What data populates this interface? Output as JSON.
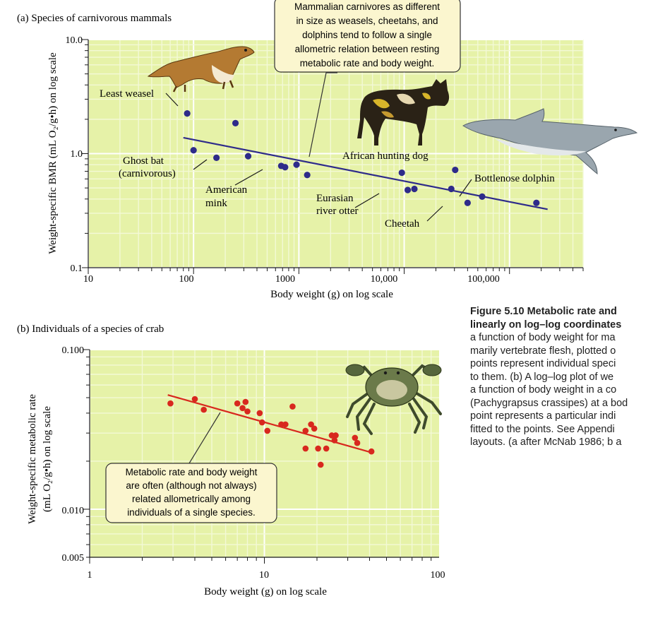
{
  "colors": {
    "plot_bg": "#e6f2a8",
    "grid_major": "#ffffff",
    "grid_minor": "#f3f9d6",
    "points_a": "#2e2b8a",
    "fit_a": "#2e2b8a",
    "points_b": "#d8281e",
    "fit_b": "#d8281e",
    "callout_bg": "#fbf6cf",
    "callout_border": "#333333"
  },
  "icons": [
    "weasel-icon",
    "hunting-dog-icon",
    "dolphin-icon",
    "crab-icon"
  ],
  "chart_data": [
    {
      "type": "scatter",
      "panel_label": "(a) Species of carnivorous mammals",
      "xlabel": "Body weight (g) on log scale",
      "ylabel": "Weight-specific BMR (mL O₂/g•h) on log scale",
      "xscale": "log",
      "yscale": "log",
      "xlim": [
        10,
        500000
      ],
      "ylim": [
        0.1,
        10
      ],
      "x_tick_labels": [
        "10",
        "100",
        "1000",
        "10,000",
        "100,000"
      ],
      "y_tick_labels": [
        "0.1",
        "1.0",
        "10.0"
      ],
      "grid": true,
      "series": [
        {
          "points": [
            [
              87,
              2.25
            ],
            [
              100,
              1.07
            ],
            [
              165,
              0.92
            ],
            [
              250,
              1.85
            ],
            [
              330,
              0.95
            ],
            [
              680,
              0.78
            ],
            [
              740,
              0.76
            ],
            [
              950,
              0.8
            ],
            [
              1200,
              0.65
            ],
            [
              9500,
              0.68
            ],
            [
              10800,
              0.48
            ],
            [
              12500,
              0.49
            ],
            [
              28000,
              0.49
            ],
            [
              30500,
              0.72
            ],
            [
              40000,
              0.37
            ],
            [
              55000,
              0.42
            ],
            [
              180000,
              0.37
            ]
          ]
        }
      ],
      "fit_line": {
        "x": [
          80,
          230000
        ],
        "y": [
          1.38,
          0.325
        ]
      },
      "labels": [
        "Least weasel",
        "Ghost bat",
        "(carnivorous)",
        "American",
        "mink",
        "African hunting dog",
        "Eurasian",
        "river otter",
        "Cheetah",
        "Bottlenose dolphin"
      ],
      "callout": [
        "Mammalian carnivores as different",
        "in size as weasels, cheetahs, and",
        "dolphins tend to follow a single",
        "allometric relation between resting",
        "metabolic rate and body weight."
      ]
    },
    {
      "type": "scatter",
      "panel_label": "(b) Individuals of a species of crab",
      "xlabel": "Body weight (g) on log scale",
      "ylabel_lines": [
        "Weight-specific metabolic rate",
        "(mL O₂/g•h) on log scale"
      ],
      "xscale": "log",
      "yscale": "log",
      "xlim": [
        1,
        100
      ],
      "ylim": [
        0.005,
        0.1
      ],
      "x_tick_labels": [
        "1",
        "10",
        "100"
      ],
      "y_tick_labels": [
        "0.005",
        "0.010",
        "0.100"
      ],
      "grid": true,
      "series": [
        {
          "points": [
            [
              2.9,
              0.046
            ],
            [
              4.0,
              0.049
            ],
            [
              4.5,
              0.042
            ],
            [
              7.0,
              0.046
            ],
            [
              7.5,
              0.043
            ],
            [
              7.8,
              0.047
            ],
            [
              8.0,
              0.041
            ],
            [
              9.4,
              0.04
            ],
            [
              9.7,
              0.035
            ],
            [
              10.4,
              0.031
            ],
            [
              12.5,
              0.034
            ],
            [
              13.2,
              0.034
            ],
            [
              14.5,
              0.044
            ],
            [
              17.2,
              0.031
            ],
            [
              17.2,
              0.024
            ],
            [
              18.5,
              0.034
            ],
            [
              19.3,
              0.032
            ],
            [
              20.3,
              0.024
            ],
            [
              21.0,
              0.019
            ],
            [
              22.6,
              0.024
            ],
            [
              24.3,
              0.029
            ],
            [
              25.2,
              0.027
            ],
            [
              25.6,
              0.029
            ],
            [
              33.0,
              0.028
            ],
            [
              34.0,
              0.026
            ],
            [
              41.0,
              0.023
            ]
          ]
        }
      ],
      "fit_line": {
        "x": [
          2.8,
          42
        ],
        "y": [
          0.052,
          0.0225
        ]
      },
      "callout": [
        "Metabolic rate and body weight",
        "are often (although not always)",
        "related allometrically among",
        "individuals of a single species."
      ]
    }
  ],
  "caption": {
    "title_lines": [
      "Figure 5.10  Metabolic rate and",
      "linearly on log–log coordinates"
    ],
    "body_lines": [
      "a function of body weight for ma",
      "marily vertebrate flesh, plotted o",
      "points represent individual speci",
      "to them. (b) A log–log plot of we",
      "a function of body weight in a co",
      "(Pachygrapsus crassipes) at a bod",
      "point represents a particular indi",
      "fitted to the points. See Appendi",
      "layouts. (a after McNab 1986; b a"
    ]
  }
}
